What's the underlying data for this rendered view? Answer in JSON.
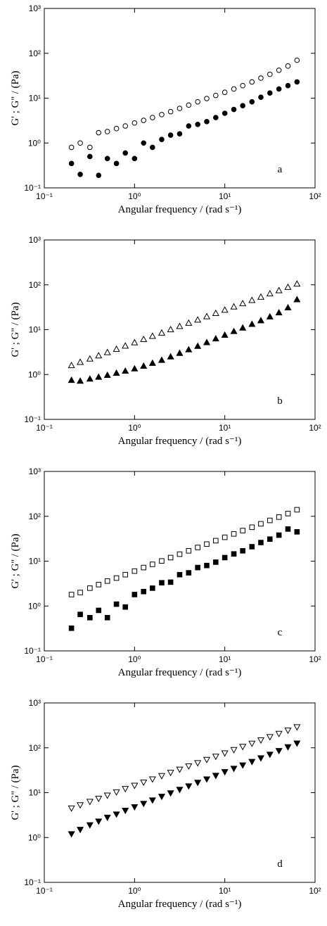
{
  "chart_data": [
    {
      "type": "scatter",
      "xlabel": "Angular frequency / (rad s⁻¹)",
      "ylabel": "G' ; G'' / (Pa)",
      "annotation": "a",
      "log_x": true,
      "log_y": true,
      "xlim": [
        0.1,
        100
      ],
      "ylim": [
        0.1,
        1000
      ],
      "xticks": [
        {
          "value": 0.1,
          "label": "10⁻¹"
        },
        {
          "value": 1,
          "label": "10⁰"
        },
        {
          "value": 10,
          "label": "10¹"
        },
        {
          "value": 100,
          "label": "10²"
        }
      ],
      "yticks": [
        {
          "value": 0.1,
          "label": "10⁻¹"
        },
        {
          "value": 1,
          "label": "10⁰"
        },
        {
          "value": 10,
          "label": "10¹"
        },
        {
          "value": 100,
          "label": "10²"
        },
        {
          "value": 1000,
          "label": "10³"
        }
      ],
      "x": [
        0.2,
        0.25,
        0.32,
        0.4,
        0.5,
        0.63,
        0.79,
        1,
        1.26,
        1.58,
        2,
        2.51,
        3.16,
        3.98,
        5.01,
        6.31,
        7.94,
        10,
        12.6,
        15.8,
        20,
        25.1,
        31.6,
        39.8,
        50.1,
        63.1
      ],
      "series": [
        {
          "marker": "circle",
          "filled": false,
          "color": "#000000",
          "values": [
            0.8,
            1.0,
            0.8,
            1.7,
            1.8,
            2.1,
            2.4,
            2.8,
            3.2,
            3.7,
            4.3,
            5.0,
            5.9,
            7.0,
            8.3,
            9.8,
            11.5,
            13.5,
            16,
            19,
            23,
            28,
            34,
            42,
            52,
            70
          ]
        },
        {
          "marker": "circle",
          "filled": true,
          "color": "#000000",
          "values": [
            0.35,
            0.2,
            0.5,
            0.19,
            0.45,
            0.35,
            0.6,
            0.45,
            1.0,
            0.8,
            1.2,
            1.5,
            1.6,
            2.4,
            2.6,
            3.0,
            3.7,
            4.6,
            5.6,
            6.8,
            8.3,
            10.5,
            13,
            16,
            19,
            23
          ]
        }
      ]
    },
    {
      "type": "scatter",
      "xlabel": "Angular frequency / (rad s⁻¹)",
      "ylabel": "G' ; G'' / (Pa)",
      "annotation": "b",
      "log_x": true,
      "log_y": true,
      "xlim": [
        0.1,
        100
      ],
      "ylim": [
        0.1,
        1000
      ],
      "xticks": [
        {
          "value": 0.1,
          "label": "10⁻¹"
        },
        {
          "value": 1,
          "label": "10⁰"
        },
        {
          "value": 10,
          "label": "10¹"
        },
        {
          "value": 100,
          "label": "10²"
        }
      ],
      "yticks": [
        {
          "value": 0.1,
          "label": "10⁻¹"
        },
        {
          "value": 1,
          "label": "10⁰"
        },
        {
          "value": 10,
          "label": "10¹"
        },
        {
          "value": 100,
          "label": "10²"
        },
        {
          "value": 1000,
          "label": "10³"
        }
      ],
      "x": [
        0.2,
        0.25,
        0.32,
        0.4,
        0.5,
        0.63,
        0.79,
        1,
        1.26,
        1.58,
        2,
        2.51,
        3.16,
        3.98,
        5.01,
        6.31,
        7.94,
        10,
        12.6,
        15.8,
        20,
        25.1,
        31.6,
        39.8,
        50.1,
        63.1
      ],
      "series": [
        {
          "marker": "triangle-up",
          "filled": false,
          "color": "#000000",
          "values": [
            1.6,
            1.89,
            2.24,
            2.64,
            3.12,
            3.69,
            4.36,
            5.16,
            6.1,
            7.2,
            8.5,
            10.1,
            11.9,
            14.1,
            16.6,
            19.7,
            23.3,
            27.5,
            32.5,
            38.4,
            45.4,
            53.7,
            63.5,
            75,
            88.7,
            105
          ]
        },
        {
          "marker": "triangle-up",
          "filled": true,
          "color": "#000000",
          "values": [
            0.75,
            0.72,
            0.8,
            0.88,
            0.97,
            1.08,
            1.2,
            1.35,
            1.55,
            1.8,
            2.1,
            2.5,
            3.0,
            3.6,
            4.3,
            5.2,
            6.3,
            7.6,
            9.2,
            11,
            13.3,
            16,
            19.5,
            24,
            31,
            47
          ]
        }
      ]
    },
    {
      "type": "scatter",
      "xlabel": "Angular frequency / (rad s⁻¹)",
      "ylabel": "G' ; G'' / (Pa)",
      "annotation": "c",
      "log_x": true,
      "log_y": true,
      "xlim": [
        0.1,
        100
      ],
      "ylim": [
        0.1,
        1000
      ],
      "xticks": [
        {
          "value": 0.1,
          "label": "10⁻¹"
        },
        {
          "value": 1,
          "label": "10⁰"
        },
        {
          "value": 10,
          "label": "10¹"
        },
        {
          "value": 100,
          "label": "10²"
        }
      ],
      "yticks": [
        {
          "value": 0.1,
          "label": "10⁻¹"
        },
        {
          "value": 1,
          "label": "10⁰"
        },
        {
          "value": 10,
          "label": "10¹"
        },
        {
          "value": 100,
          "label": "10²"
        },
        {
          "value": 1000,
          "label": "10³"
        }
      ],
      "x": [
        0.2,
        0.25,
        0.32,
        0.4,
        0.5,
        0.63,
        0.79,
        1,
        1.26,
        1.58,
        2,
        2.51,
        3.16,
        3.98,
        5.01,
        6.31,
        7.94,
        10,
        12.6,
        15.8,
        20,
        25.1,
        31.6,
        39.8,
        50.1,
        63.1
      ],
      "series": [
        {
          "marker": "square",
          "filled": false,
          "color": "#000000",
          "values": [
            1.8,
            2.0,
            2.5,
            3.0,
            3.6,
            4.2,
            5.0,
            6.0,
            7.2,
            8.5,
            10.1,
            12,
            14.3,
            17,
            20.2,
            24,
            28.6,
            34,
            40.5,
            48,
            57,
            68,
            81,
            96,
            115,
            140
          ]
        },
        {
          "marker": "square",
          "filled": true,
          "color": "#000000",
          "values": [
            0.32,
            0.65,
            0.55,
            0.8,
            0.55,
            1.1,
            0.95,
            1.8,
            2.1,
            2.5,
            3.3,
            3.4,
            5.0,
            5.5,
            7.2,
            8.0,
            9.5,
            12,
            14.5,
            17,
            21,
            26,
            31,
            38,
            52,
            45
          ]
        }
      ]
    },
    {
      "type": "scatter",
      "xlabel": "Angular frequency / (rad s⁻¹)",
      "ylabel": "G' ; G'' / (Pa)",
      "annotation": "d",
      "log_x": true,
      "log_y": true,
      "xlim": [
        0.1,
        100
      ],
      "ylim": [
        0.1,
        1000
      ],
      "xticks": [
        {
          "value": 0.1,
          "label": "10⁻¹"
        },
        {
          "value": 1,
          "label": "10⁰"
        },
        {
          "value": 10,
          "label": "10¹"
        },
        {
          "value": 100,
          "label": "10²"
        }
      ],
      "yticks": [
        {
          "value": 0.1,
          "label": "10⁻¹"
        },
        {
          "value": 1,
          "label": "10⁰"
        },
        {
          "value": 10,
          "label": "10¹"
        },
        {
          "value": 100,
          "label": "10²"
        },
        {
          "value": 1000,
          "label": "10³"
        }
      ],
      "x": [
        0.2,
        0.25,
        0.32,
        0.4,
        0.5,
        0.63,
        0.79,
        1,
        1.26,
        1.58,
        2,
        2.51,
        3.16,
        3.98,
        5.01,
        6.31,
        7.94,
        10,
        12.6,
        15.8,
        20,
        25.1,
        31.6,
        39.8,
        50.1,
        63.1
      ],
      "series": [
        {
          "marker": "triangle-down",
          "filled": false,
          "color": "#000000",
          "values": [
            4.5,
            5.3,
            6.3,
            7.4,
            8.7,
            10.3,
            12.2,
            14.4,
            17,
            20,
            23.7,
            28,
            33,
            39,
            46,
            54.5,
            64,
            76,
            90,
            106,
            125,
            148,
            175,
            207,
            245,
            290
          ]
        },
        {
          "marker": "triangle-down",
          "filled": true,
          "color": "#000000",
          "values": [
            1.2,
            1.5,
            1.9,
            2.3,
            2.8,
            3.3,
            4.0,
            4.8,
            5.7,
            6.8,
            8.2,
            9.8,
            11.7,
            14,
            16.8,
            20,
            24,
            29,
            34.5,
            41,
            49,
            59,
            71,
            86,
            104,
            126
          ]
        }
      ]
    }
  ]
}
